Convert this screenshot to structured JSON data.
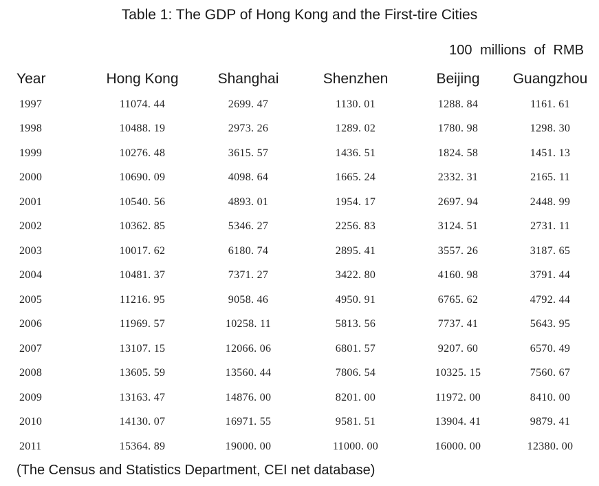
{
  "title": "Table 1: The GDP of Hong Kong and the First-tire Cities",
  "unit": "100 millions of RMB",
  "columns": [
    "Year",
    "Hong Kong",
    "Shanghai",
    "Shenzhen",
    "Beijing",
    "Guangzhou"
  ],
  "rows": [
    [
      "1997",
      "11074. 44",
      "2699. 47",
      "1130. 01",
      "1288. 84",
      "1161. 61"
    ],
    [
      "1998",
      "10488. 19",
      "2973. 26",
      "1289. 02",
      "1780. 98",
      "1298. 30"
    ],
    [
      "1999",
      "10276. 48",
      "3615. 57",
      "1436. 51",
      "1824. 58",
      "1451. 13"
    ],
    [
      "2000",
      "10690. 09",
      "4098. 64",
      "1665. 24",
      "2332. 31",
      "2165. 11"
    ],
    [
      "2001",
      "10540. 56",
      "4893. 01",
      "1954. 17",
      "2697. 94",
      "2448. 99"
    ],
    [
      "2002",
      "10362. 85",
      "5346. 27",
      "2256. 83",
      "3124. 51",
      "2731. 11"
    ],
    [
      "2003",
      "10017. 62",
      "6180. 74",
      "2895. 41",
      "3557. 26",
      "3187. 65"
    ],
    [
      "2004",
      "10481. 37",
      "7371. 27",
      "3422. 80",
      "4160. 98",
      "3791. 44"
    ],
    [
      "2005",
      "11216. 95",
      "9058. 46",
      "4950. 91",
      "6765. 62",
      "4792. 44"
    ],
    [
      "2006",
      "11969. 57",
      "10258. 11",
      "5813. 56",
      "7737. 41",
      "5643. 95"
    ],
    [
      "2007",
      "13107. 15",
      "12066. 06",
      "6801. 57",
      "9207. 60",
      "6570. 49"
    ],
    [
      "2008",
      "13605. 59",
      "13560. 44",
      "7806. 54",
      "10325. 15",
      "7560. 67"
    ],
    [
      "2009",
      "13163. 47",
      "14876. 00",
      "8201. 00",
      "11972. 00",
      "8410. 00"
    ],
    [
      "2010",
      "14130. 07",
      "16971. 55",
      "9581. 51",
      "13904. 41",
      "9879. 41"
    ],
    [
      "2011",
      "15364. 89",
      "19000. 00",
      "11000. 00",
      "16000. 00",
      "12380. 00"
    ]
  ],
  "source": "(The Census and Statistics Department, CEI net database)"
}
